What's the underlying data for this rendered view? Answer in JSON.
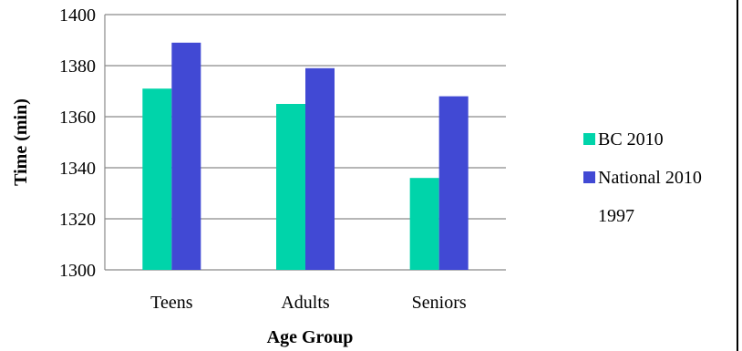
{
  "chart_data": {
    "type": "bar",
    "categories": [
      "Teens",
      "Adults",
      "Seniors"
    ],
    "series": [
      {
        "name": "BC 2010",
        "values": [
          1371,
          1365,
          1336
        ],
        "color": "#00d4aa"
      },
      {
        "name": "National 2010",
        "values": [
          1389,
          1379,
          1368
        ],
        "color": "#4149d4"
      }
    ],
    "extra_legend_text": "1997",
    "xlabel": "Age Group",
    "ylabel": "Time (min)",
    "ylim": [
      1300,
      1400
    ],
    "yticks": [
      1300,
      1320,
      1340,
      1360,
      1380,
      1400
    ],
    "grid": true,
    "legend_position": "right"
  }
}
